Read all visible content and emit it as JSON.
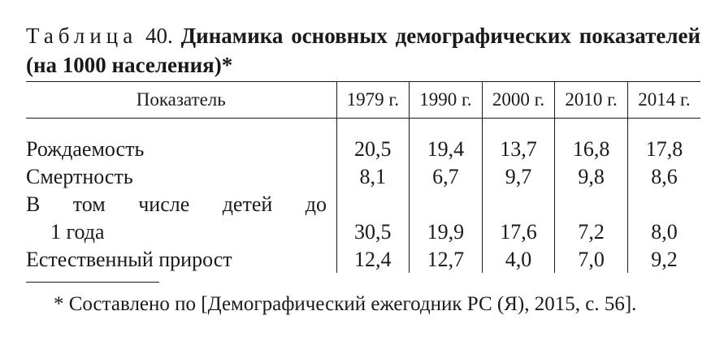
{
  "caption": {
    "prefix": "Таблица",
    "number": "40.",
    "title": "Динамика основных демографических показателей (на 1000 населения)*"
  },
  "table": {
    "header": {
      "indicator": "Показатель",
      "years": [
        "1979 г.",
        "1990 г.",
        "2000 г.",
        "2010 г.",
        "2014 г."
      ]
    },
    "rows": [
      {
        "label": "Рождаемость",
        "values": [
          "20,5",
          "19,4",
          "13,7",
          "16,8",
          "17,8"
        ]
      },
      {
        "label": "Смертность",
        "values": [
          "8,1",
          "6,7",
          "9,7",
          "9,8",
          "8,6"
        ]
      },
      {
        "label_words": [
          "В",
          "том",
          "числе",
          "детей",
          "до"
        ]
      },
      {
        "label": "1 года",
        "values": [
          "30,5",
          "19,9",
          "17,6",
          "7,2",
          "8,0"
        ]
      },
      {
        "label": "Естественный прирост",
        "values": [
          "12,4",
          "12,7",
          "4,0",
          "7,0",
          "9,2"
        ]
      }
    ]
  },
  "footnote": {
    "text": "* Составлено по [Демографический ежегодник РС (Я), 2015, с. 56]."
  }
}
